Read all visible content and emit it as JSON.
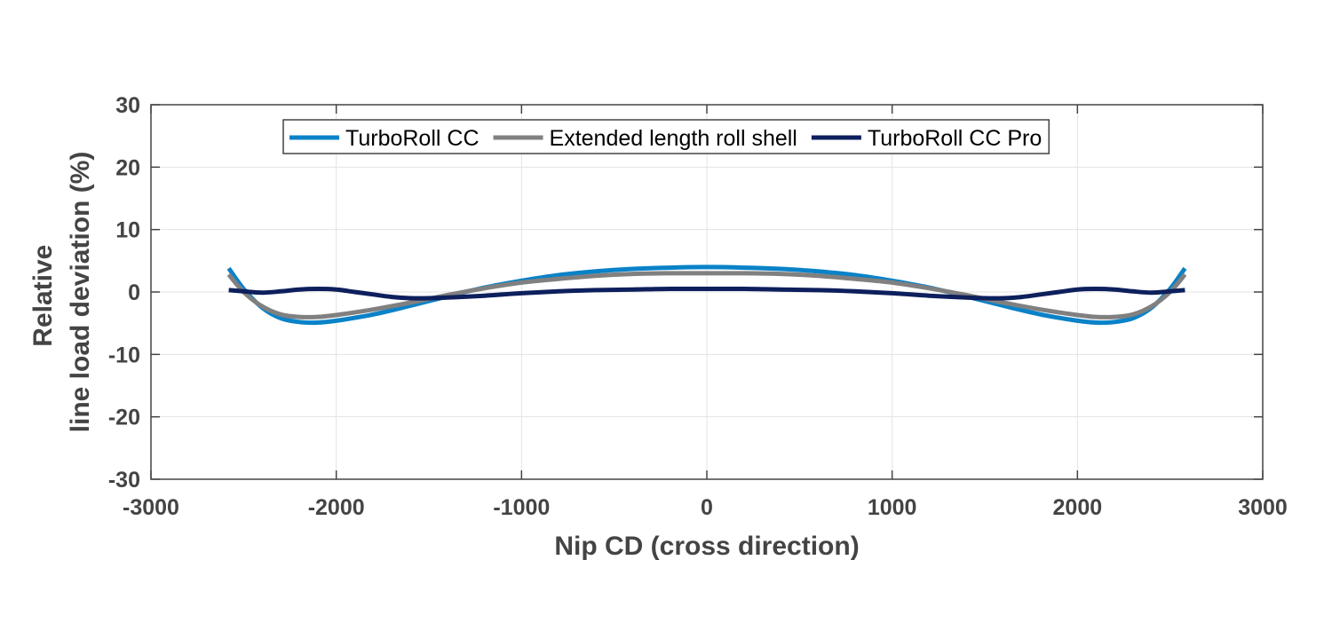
{
  "chart_data": {
    "type": "line",
    "title": "",
    "xlabel": "Nip CD (cross direction)",
    "ylabel_lines": [
      "Relative",
      "line load deviation (%)"
    ],
    "xlim": [
      -3000,
      3000
    ],
    "ylim": [
      -30,
      30
    ],
    "xticks": [
      -3000,
      -2000,
      -1000,
      0,
      1000,
      2000,
      3000
    ],
    "yticks": [
      -30,
      -20,
      -10,
      0,
      10,
      20,
      30
    ],
    "xtick_labels": [
      "-3000",
      "-2000",
      "-1000",
      "0",
      "1000",
      "2000",
      "3000"
    ],
    "ytick_labels": [
      "-30",
      "-20",
      "-10",
      "0",
      "10",
      "20",
      "30"
    ],
    "grid": true,
    "legend_position": "top-center",
    "series": [
      {
        "name": "TurboRoll CC",
        "color": "#0a82c8",
        "x": [
          -2580,
          -2500,
          -2400,
          -2300,
          -2200,
          -2100,
          -2000,
          -1800,
          -1600,
          -1400,
          -1200,
          -1000,
          -800,
          -600,
          -400,
          -200,
          0,
          200,
          400,
          600,
          800,
          1000,
          1200,
          1400,
          1600,
          1800,
          2000,
          2100,
          2200,
          2300,
          2400,
          2500,
          2580
        ],
        "y": [
          3.8,
          0.5,
          -2.5,
          -4.2,
          -4.8,
          -4.9,
          -4.6,
          -3.6,
          -2.2,
          -0.7,
          0.7,
          1.8,
          2.7,
          3.3,
          3.7,
          3.9,
          4.0,
          3.9,
          3.7,
          3.3,
          2.7,
          1.8,
          0.7,
          -0.7,
          -2.2,
          -3.6,
          -4.6,
          -4.9,
          -4.8,
          -4.2,
          -2.5,
          0.5,
          3.8
        ]
      },
      {
        "name": "Extended length roll shell",
        "color": "#808080",
        "x": [
          -2580,
          -2500,
          -2400,
          -2300,
          -2200,
          -2100,
          -2000,
          -1800,
          -1600,
          -1400,
          -1200,
          -1000,
          -800,
          -600,
          -400,
          -200,
          0,
          200,
          400,
          600,
          800,
          1000,
          1200,
          1400,
          1600,
          1800,
          2000,
          2100,
          2200,
          2300,
          2400,
          2500,
          2580
        ],
        "y": [
          2.8,
          0.0,
          -2.3,
          -3.6,
          -4.0,
          -4.0,
          -3.7,
          -2.8,
          -1.7,
          -0.5,
          0.6,
          1.5,
          2.1,
          2.6,
          2.9,
          3.0,
          3.0,
          3.0,
          2.9,
          2.6,
          2.1,
          1.5,
          0.6,
          -0.5,
          -1.7,
          -2.8,
          -3.7,
          -4.0,
          -4.0,
          -3.6,
          -2.3,
          0.0,
          2.8
        ]
      },
      {
        "name": "TurboRoll CC Pro",
        "color": "#0d1f5c",
        "x": [
          -2580,
          -2500,
          -2400,
          -2300,
          -2200,
          -2100,
          -2000,
          -1900,
          -1800,
          -1700,
          -1600,
          -1500,
          -1400,
          -1200,
          -1000,
          -800,
          -600,
          -400,
          -200,
          0,
          200,
          400,
          600,
          800,
          1000,
          1200,
          1400,
          1500,
          1600,
          1700,
          1800,
          1900,
          2000,
          2100,
          2200,
          2300,
          2400,
          2500,
          2580
        ],
        "y": [
          0.3,
          0.1,
          -0.1,
          0.1,
          0.4,
          0.5,
          0.4,
          0.0,
          -0.4,
          -0.8,
          -1.0,
          -1.0,
          -0.9,
          -0.6,
          -0.2,
          0.1,
          0.3,
          0.4,
          0.5,
          0.5,
          0.5,
          0.4,
          0.3,
          0.1,
          -0.2,
          -0.6,
          -0.9,
          -1.0,
          -1.0,
          -0.8,
          -0.4,
          0.0,
          0.4,
          0.5,
          0.4,
          0.1,
          -0.1,
          0.1,
          0.3
        ]
      }
    ]
  }
}
